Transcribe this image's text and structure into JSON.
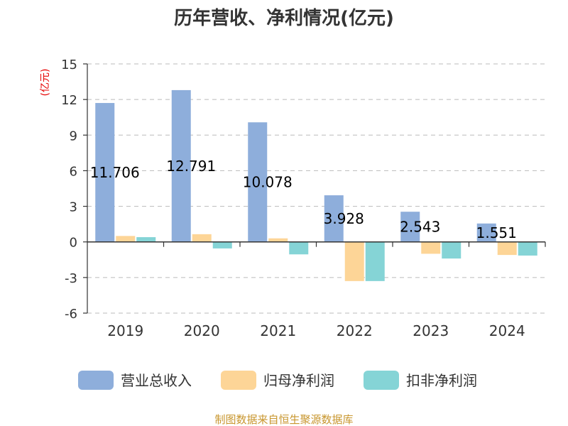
{
  "chart_data": {
    "type": "bar",
    "title": "历年营收、净利情况(亿元)",
    "ylabel": "(亿元)",
    "xlabel": "",
    "categories": [
      "2019",
      "2020",
      "2021",
      "2022",
      "2023",
      "2024"
    ],
    "ylim": [
      -6,
      15
    ],
    "yticks": [
      15,
      12,
      9,
      6,
      3,
      0,
      -3,
      -6
    ],
    "grid": true,
    "legend_position": "bottom",
    "series": [
      {
        "name": "营业总收入",
        "color": "#8eaedb",
        "values": [
          11.706,
          12.791,
          10.078,
          3.928,
          2.543,
          1.551
        ],
        "labels": [
          "11.706",
          "12.791",
          "10.078",
          "3.928",
          "2.543",
          "1.551"
        ]
      },
      {
        "name": "归母净利润",
        "color": "#fdd597",
        "values": [
          0.5,
          0.65,
          0.3,
          -3.3,
          -1.0,
          -1.1
        ]
      },
      {
        "name": "扣非净利润",
        "color": "#85d4d6",
        "values": [
          0.4,
          -0.55,
          -1.05,
          -3.3,
          -1.4,
          -1.15
        ]
      }
    ],
    "source": "制图数据来自恒生聚源数据库"
  }
}
